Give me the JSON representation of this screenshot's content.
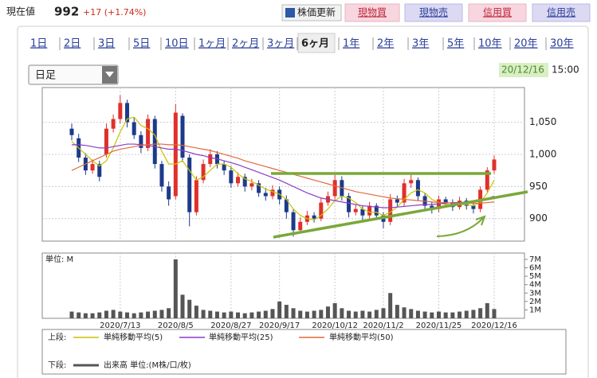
{
  "header": {
    "price_label": "現在値",
    "price": "992",
    "change": "+17 (+1.74%)",
    "buttons": [
      "株価更新",
      "現物買",
      "現物売",
      "信用買",
      "信用売"
    ]
  },
  "tabs": [
    "1日",
    "2日",
    "3日",
    "5日",
    "10日",
    "1ヶ月",
    "2ヶ月",
    "3ヶ月",
    "6ヶ月",
    "1年",
    "2年",
    "3年",
    "5年",
    "10年",
    "20年",
    "30年"
  ],
  "period_select": "日足",
  "date": "20/12/16",
  "time": "15:00",
  "chart_data": [
    {
      "type": "candlestick",
      "legend_label": "上段:",
      "up_color": "#e0302a",
      "down_color": "#1d3a8a",
      "open": [
        1040,
        1025,
        995,
        975,
        985,
        1000,
        1040,
        1055,
        1080,
        1050,
        1030,
        1010,
        1055,
        985,
        950,
        935,
        1060,
        995,
        910,
        960,
        985,
        1000,
        985,
        975,
        955,
        965,
        950,
        955,
        940,
        935,
        945,
        930,
        910,
        882,
        895,
        905,
        900,
        925,
        935,
        960,
        935,
        910,
        915,
        905,
        920,
        905,
        895,
        930,
        925,
        955,
        960,
        935,
        920,
        915,
        930,
        925,
        918,
        928,
        920,
        915,
        945,
        975
      ],
      "high": [
        1048,
        1032,
        1002,
        992,
        990,
        1048,
        1062,
        1092,
        1085,
        1058,
        1036,
        1062,
        1060,
        990,
        958,
        1078,
        1064,
        1000,
        966,
        992,
        1008,
        1005,
        990,
        982,
        972,
        970,
        962,
        960,
        948,
        952,
        950,
        936,
        915,
        902,
        912,
        910,
        932,
        942,
        968,
        966,
        940,
        922,
        920,
        926,
        924,
        910,
        938,
        936,
        962,
        972,
        964,
        940,
        926,
        936,
        934,
        930,
        934,
        932,
        926,
        950,
        980,
        998
      ],
      "low": [
        1022,
        988,
        968,
        970,
        958,
        995,
        1034,
        1048,
        1042,
        1024,
        1002,
        1005,
        978,
        942,
        920,
        930,
        988,
        888,
        905,
        955,
        980,
        978,
        968,
        948,
        950,
        942,
        944,
        934,
        928,
        930,
        922,
        900,
        872,
        878,
        890,
        894,
        896,
        920,
        930,
        928,
        902,
        905,
        898,
        900,
        898,
        885,
        890,
        918,
        920,
        948,
        928,
        914,
        908,
        910,
        918,
        912,
        914,
        914,
        908,
        910,
        940,
        970
      ],
      "close": [
        1030,
        995,
        975,
        985,
        965,
        1040,
        1055,
        1080,
        1050,
        1030,
        1010,
        1055,
        985,
        950,
        930,
        1065,
        995,
        910,
        960,
        985,
        1000,
        985,
        975,
        955,
        965,
        950,
        955,
        940,
        935,
        945,
        930,
        910,
        882,
        895,
        905,
        900,
        925,
        935,
        960,
        935,
        910,
        915,
        905,
        920,
        905,
        895,
        930,
        925,
        955,
        960,
        935,
        920,
        915,
        930,
        925,
        918,
        928,
        920,
        915,
        945,
        975,
        992
      ],
      "series": [
        {
          "name": "単純移動平均(5)",
          "color": "#c9c400",
          "values": [
            1020,
            1010,
            1000,
            990,
            982,
            990,
            1010,
            1035,
            1055,
            1058,
            1045,
            1040,
            1030,
            1005,
            985,
            985,
            990,
            975,
            960,
            965,
            975,
            985,
            985,
            980,
            970,
            962,
            958,
            952,
            946,
            942,
            938,
            930,
            915,
            905,
            900,
            898,
            905,
            915,
            928,
            935,
            932,
            925,
            915,
            910,
            910,
            905,
            910,
            918,
            930,
            940,
            945,
            940,
            930,
            925,
            922,
            922,
            922,
            922,
            920,
            925,
            940,
            960
          ]
        },
        {
          "name": "単純移動平均(25)",
          "color": "#8a3cc8",
          "values": [
            1015,
            1015,
            1014,
            1012,
            1010,
            1010,
            1012,
            1014,
            1016,
            1016,
            1015,
            1014,
            1012,
            1010,
            1008,
            1008,
            1006,
            1003,
            1000,
            998,
            995,
            993,
            990,
            987,
            984,
            980,
            976,
            972,
            968,
            964,
            960,
            955,
            950,
            945,
            940,
            936,
            932,
            930,
            928,
            926,
            924,
            922,
            920,
            919,
            918,
            917,
            917,
            918,
            919,
            920,
            921,
            922,
            922,
            923,
            924,
            925,
            925,
            926,
            927,
            928,
            931,
            935
          ]
        },
        {
          "name": "単純移動平均(50)",
          "color": "#e06a3c",
          "values": [
            975,
            980,
            985,
            990,
            995,
            1000,
            1005,
            1008,
            1010,
            1012,
            1014,
            1015,
            1016,
            1016,
            1015,
            1015,
            1014,
            1012,
            1010,
            1008,
            1006,
            1003,
            1000,
            997,
            994,
            990,
            987,
            984,
            981,
            978,
            975,
            972,
            969,
            966,
            963,
            960,
            957,
            954,
            951,
            948,
            945,
            942,
            940,
            938,
            936,
            934,
            932,
            931,
            930,
            929,
            928,
            927,
            926,
            925,
            925,
            924,
            924,
            924,
            924,
            924,
            925,
            926
          ]
        }
      ],
      "ylim": [
        865,
        1104
      ],
      "yticks": [
        {
          "value": 1050,
          "label": "1,050"
        },
        {
          "value": 1000,
          "label": "1,000"
        },
        950,
        900
      ],
      "grid": true
    },
    {
      "type": "bar",
      "title": "単位: M",
      "legend_label": "下段:",
      "categories": [
        null,
        null,
        null,
        null,
        null,
        null,
        null,
        "2020/7/13",
        null,
        null,
        null,
        null,
        null,
        null,
        null,
        "2020/8/5",
        null,
        null,
        null,
        null,
        null,
        null,
        null,
        "2020/8/27",
        null,
        null,
        null,
        null,
        null,
        null,
        "2020/9/17",
        null,
        null,
        null,
        null,
        null,
        null,
        null,
        "2020/10/12",
        null,
        null,
        null,
        null,
        null,
        null,
        "2020/11/2",
        null,
        null,
        null,
        null,
        null,
        null,
        null,
        "2020/11/25",
        null,
        null,
        null,
        null,
        null,
        null,
        null,
        "2020/12/16"
      ],
      "series": [
        {
          "name": "出来高 単位:(M株/口/枚)",
          "color": "#555555",
          "values": [
            0.8,
            0.7,
            0.6,
            0.6,
            0.7,
            0.9,
            1.0,
            0.8,
            0.7,
            0.6,
            0.7,
            0.8,
            0.9,
            1.0,
            1.2,
            7.0,
            2.8,
            2.2,
            1.5,
            1.0,
            0.9,
            0.8,
            0.7,
            0.8,
            0.7,
            0.6,
            0.7,
            0.8,
            0.9,
            1.1,
            2.0,
            1.6,
            1.2,
            0.9,
            0.8,
            0.9,
            1.0,
            1.4,
            1.8,
            1.2,
            0.9,
            0.8,
            0.9,
            0.8,
            1.0,
            1.2,
            3.0,
            1.6,
            1.3,
            1.1,
            0.9,
            0.8,
            0.7,
            0.8,
            0.7,
            0.7,
            0.8,
            0.9,
            1.0,
            1.2,
            1.8,
            1.1
          ]
        }
      ],
      "ylim": [
        0,
        7.75
      ],
      "yticks": [
        {
          "value": 7,
          "label": "7M"
        },
        {
          "value": 6,
          "label": "6M"
        },
        {
          "value": 5,
          "label": "5M"
        },
        {
          "value": 4,
          "label": "4M"
        },
        {
          "value": 3,
          "label": "3M"
        },
        {
          "value": 2,
          "label": "2M"
        },
        {
          "value": 1,
          "label": "1M"
        }
      ],
      "grid": true
    }
  ]
}
